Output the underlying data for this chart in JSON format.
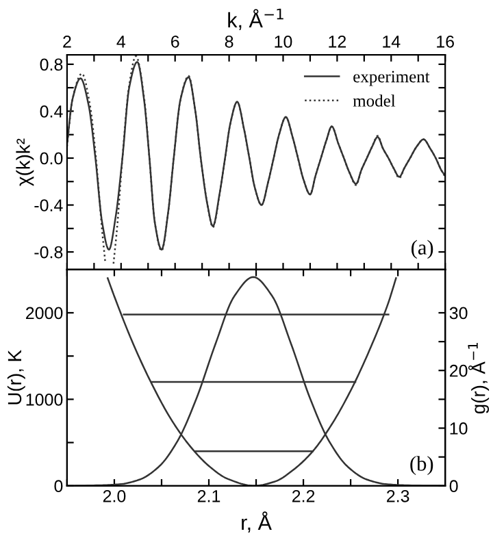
{
  "chart_data": [
    {
      "type": "line",
      "xlabel": "k, Å$^{−1}$",
      "ylabel": "χ(k)k²",
      "xlim": [
        2,
        16
      ],
      "ylim": [
        -0.95,
        0.88
      ],
      "xticks": [
        2,
        {
          "value": 3,
          "label": null
        },
        4,
        {
          "value": 5,
          "label": null
        },
        6,
        {
          "value": 7,
          "label": null
        },
        8,
        {
          "value": 9,
          "label": null
        },
        10,
        {
          "value": 11,
          "label": null
        },
        12,
        {
          "value": 13,
          "label": null
        },
        14,
        {
          "value": 15,
          "label": null
        },
        16
      ],
      "yticks": [
        {
          "value": -0.8,
          "label": "-0.8"
        },
        {
          "value": -0.6,
          "label": null
        },
        {
          "value": -0.4,
          "label": "-0.4"
        },
        {
          "value": -0.2,
          "label": null
        },
        {
          "value": 0,
          "label": "0.0"
        },
        {
          "value": 0.2,
          "label": null
        },
        {
          "value": 0.4,
          "label": "0.4"
        },
        {
          "value": 0.6,
          "label": null
        },
        {
          "value": 0.8,
          "label": "0.8"
        }
      ],
      "grid": false,
      "legend": "top right",
      "marker": "none",
      "annotations": [
        "(a)"
      ],
      "series": [
        {
          "name": "experiment",
          "color": "#333333",
          "line_style": "solid",
          "x": [
            2.0,
            2.2,
            2.5,
            2.8,
            3.05,
            3.3,
            3.55,
            3.8,
            4.05,
            4.3,
            4.6,
            4.85,
            5.05,
            5.25,
            5.5,
            5.75,
            5.95,
            6.2,
            6.5,
            6.75,
            6.95,
            7.2,
            7.4,
            7.65,
            7.85,
            8.05,
            8.3,
            8.55,
            8.75,
            8.95,
            9.2,
            9.45,
            9.65,
            9.85,
            10.1,
            10.35,
            10.55,
            10.75,
            11.0,
            11.2,
            11.4,
            11.6,
            11.8,
            12.05,
            12.25,
            12.45,
            12.7,
            12.9,
            13.1,
            13.3,
            13.5,
            13.7,
            13.9,
            14.1,
            14.3,
            14.5,
            14.7,
            14.95,
            15.2,
            15.45,
            15.65,
            15.85,
            16.0
          ],
          "values": [
            0.12,
            0.5,
            0.68,
            0.45,
            0.0,
            -0.55,
            -0.78,
            -0.5,
            0.0,
            0.6,
            0.82,
            0.5,
            0.0,
            -0.55,
            -0.78,
            -0.45,
            0.0,
            0.5,
            0.69,
            0.4,
            0.0,
            -0.4,
            -0.58,
            -0.3,
            0.0,
            0.3,
            0.48,
            0.25,
            0.0,
            -0.25,
            -0.4,
            -0.2,
            0.0,
            0.2,
            0.35,
            0.18,
            0.0,
            -0.18,
            -0.31,
            -0.15,
            0.0,
            0.15,
            0.27,
            0.12,
            0.0,
            -0.12,
            -0.22,
            -0.1,
            0.0,
            0.1,
            0.18,
            0.08,
            0.0,
            -0.09,
            -0.16,
            -0.08,
            0.0,
            0.1,
            0.16,
            0.08,
            0.0,
            -0.1,
            -0.15
          ]
        },
        {
          "name": "model",
          "color": "#333333",
          "line_style": "dotted",
          "x": [
            2.0,
            2.2,
            2.55,
            2.85,
            3.05,
            3.3,
            3.42,
            3.55,
            3.72,
            3.85,
            4.05,
            4.3,
            4.55,
            4.85,
            5.05,
            5.25,
            5.5,
            5.75,
            5.95,
            6.2,
            6.5,
            6.75,
            6.95,
            7.2,
            7.4,
            7.65,
            7.85,
            8.05,
            8.3,
            8.55,
            8.75,
            8.95,
            9.2,
            9.45,
            9.65,
            9.85,
            10.1,
            10.35,
            10.55,
            10.75,
            11.0,
            11.2,
            11.4,
            11.6,
            11.8,
            12.05,
            12.25,
            12.45,
            12.7,
            12.9,
            13.1,
            13.3,
            13.5,
            13.7,
            13.9,
            14.1,
            14.3,
            14.5,
            14.7,
            14.95,
            15.2,
            15.45,
            15.65,
            15.85,
            16.0
          ],
          "values": [
            0.1,
            0.5,
            0.72,
            0.45,
            0.05,
            -0.62,
            -0.9,
            null,
            -0.9,
            -0.6,
            0.0,
            0.62,
            0.87,
            0.52,
            0.0,
            -0.55,
            -0.79,
            -0.45,
            0.0,
            0.5,
            0.7,
            0.4,
            0.0,
            -0.4,
            -0.59,
            -0.3,
            0.0,
            0.3,
            0.48,
            0.25,
            0.0,
            -0.25,
            -0.4,
            -0.2,
            0.0,
            0.2,
            0.35,
            0.18,
            0.0,
            -0.18,
            -0.31,
            -0.15,
            0.0,
            0.15,
            0.27,
            0.12,
            0.0,
            -0.12,
            -0.23,
            -0.1,
            0.0,
            0.1,
            0.19,
            0.08,
            0.0,
            -0.09,
            -0.17,
            -0.08,
            0.0,
            0.1,
            0.16,
            0.08,
            0.0,
            -0.1,
            -0.16
          ]
        }
      ]
    },
    {
      "type": "line",
      "xlabel": "r, Å",
      "ylabel": "U(r), K",
      "y2label": "g(r), Å$^{−1}$",
      "xlim": [
        1.95,
        2.35
      ],
      "ylim": [
        0,
        2500
      ],
      "y2lim": [
        0,
        37.5
      ],
      "xticks": [
        {
          "value": 1.95,
          "label": null
        },
        {
          "value": 2.0,
          "label": "2.0"
        },
        {
          "value": 2.05,
          "label": null
        },
        {
          "value": 2.1,
          "label": "2.1"
        },
        {
          "value": 2.15,
          "label": null
        },
        {
          "value": 2.2,
          "label": "2.2"
        },
        {
          "value": 2.25,
          "label": null
        },
        {
          "value": 2.3,
          "label": "2.3"
        }
      ],
      "yticks": [
        0,
        {
          "value": 500,
          "label": null
        },
        1000,
        {
          "value": 1500,
          "label": null
        },
        2000
      ],
      "y2ticks": [
        0,
        {
          "value": 5,
          "label": null
        },
        10,
        {
          "value": 15,
          "label": null
        },
        20,
        {
          "value": 25,
          "label": null
        },
        30
      ],
      "grid": false,
      "marker": "none",
      "annotations": [
        "(b)"
      ],
      "series": [
        {
          "color": "#333333",
          "line_style": "solid",
          "x": [
            1.993,
            2.0,
            2.02,
            2.04,
            2.06,
            2.08,
            2.1,
            2.12,
            2.148,
            2.17,
            2.19,
            2.21,
            2.23,
            2.25,
            2.27,
            2.29,
            2.298
          ],
          "values": [
            2400,
            2190,
            1640,
            1170,
            770,
            460,
            230,
            80,
            0,
            50,
            190,
            400,
            710,
            1100,
            1570,
            2120,
            2400
          ]
        },
        {
          "color": "#333333",
          "line_style": "solid",
          "x": [
            2.085,
            2.21
          ],
          "values": [
            400,
            400
          ]
        },
        {
          "color": "#333333",
          "line_style": "solid",
          "x": [
            2.04,
            2.255
          ],
          "values": [
            1200,
            1200
          ]
        },
        {
          "color": "#333333",
          "line_style": "solid",
          "x": [
            2.01,
            2.29
          ],
          "values": [
            1980,
            1980
          ]
        },
        {
          "color": "#333333",
          "line_style": "solid",
          "axis": "y2",
          "x": [
            1.95,
            1.987,
            2.007,
            2.027,
            2.047,
            2.067,
            2.087,
            2.107,
            2.127,
            2.147,
            2.167,
            2.187,
            2.207,
            2.227,
            2.247,
            2.267,
            2.287,
            2.307,
            2.35
          ],
          "values": [
            0,
            0.1,
            0.3,
            1.1,
            3.3,
            7.8,
            15.2,
            24.6,
            32.9,
            36.2,
            32.9,
            24.6,
            15.2,
            7.8,
            3.3,
            1.1,
            0.3,
            0.1,
            0
          ]
        }
      ]
    }
  ]
}
